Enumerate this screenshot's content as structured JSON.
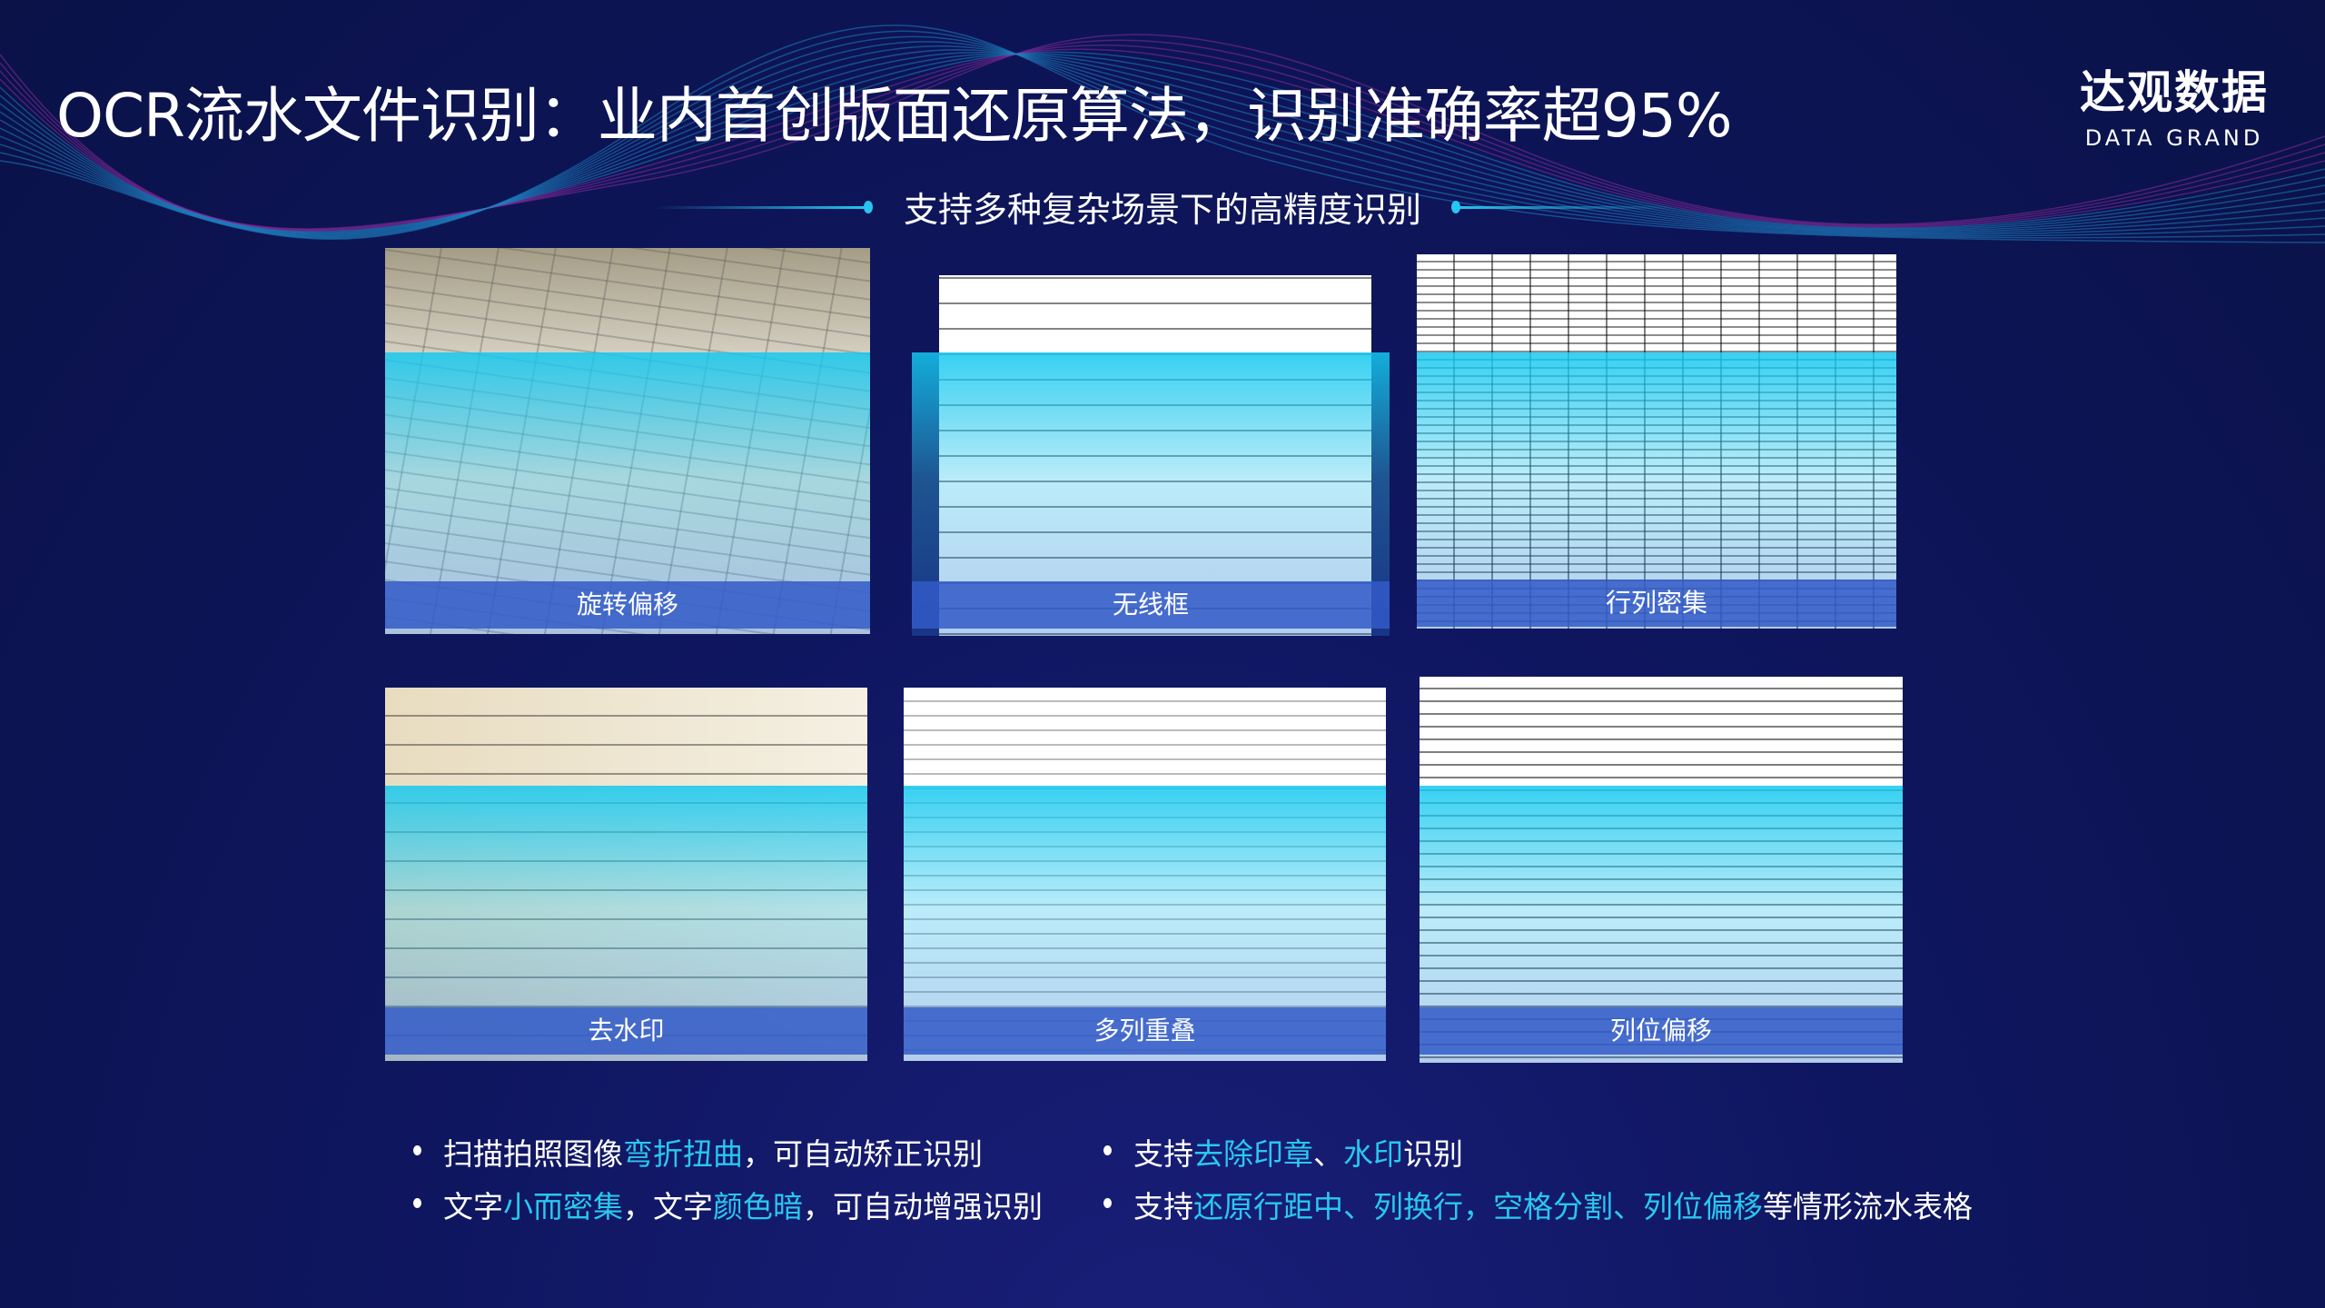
{
  "header": {
    "title": "OCR流水文件识别：业内首创版面还原算法，识别准确率超95%",
    "logo_cn": "达观数据",
    "logo_en": "DATA GRAND"
  },
  "subtitle": "支持多种复杂场景下的高精度识别",
  "colors": {
    "background": "#0f1660",
    "accent": "#29c8ef",
    "label_bar": "#3259c8"
  },
  "cards": [
    {
      "label": "旋转偏移"
    },
    {
      "label": "无线框"
    },
    {
      "label": "行列密集"
    },
    {
      "label": "去水印"
    },
    {
      "label": "多列重叠"
    },
    {
      "label": "列位偏移"
    }
  ],
  "bullets": [
    [
      {
        "t": "扫描拍照图像",
        "h": false
      },
      {
        "t": "弯折扭曲",
        "h": true
      },
      {
        "t": "，可自动矫正识别",
        "h": false
      }
    ],
    [
      {
        "t": "支持",
        "h": false
      },
      {
        "t": "去除印章",
        "h": true
      },
      {
        "t": "、",
        "h": false
      },
      {
        "t": "水印",
        "h": true
      },
      {
        "t": "识别",
        "h": false
      }
    ],
    [
      {
        "t": "文字",
        "h": false
      },
      {
        "t": "小而密集",
        "h": true
      },
      {
        "t": "，文字",
        "h": false
      },
      {
        "t": "颜色暗",
        "h": true
      },
      {
        "t": "，可自动增强识别",
        "h": false
      }
    ],
    [
      {
        "t": "支持",
        "h": false
      },
      {
        "t": "还原行距中、列换行，空格分割、列位偏移",
        "h": true
      },
      {
        "t": "等情形流水表格",
        "h": false
      }
    ]
  ]
}
